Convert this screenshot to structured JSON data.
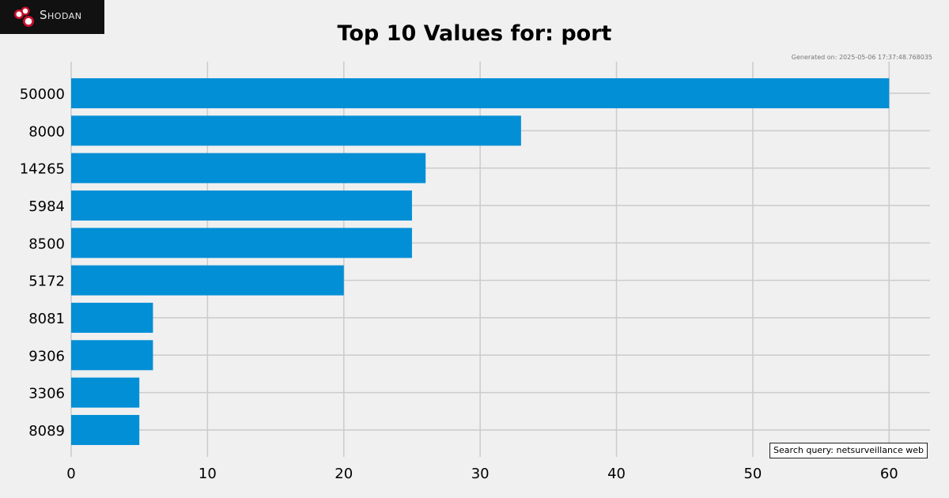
{
  "brand": {
    "name": "Shodan",
    "icon": "shodan-logo-icon"
  },
  "generated_text": "Generated on: 2025-05-06 17:37:48.768035",
  "search_query_text": "Search query: netsurveillance web",
  "colors": {
    "bar": "#038fd6",
    "background": "#f0f0f0",
    "grid": "#cbcbcb"
  },
  "chart_data": {
    "type": "bar",
    "orientation": "horizontal",
    "title": "Top 10 Values for: port",
    "xlabel": "",
    "ylabel": "",
    "categories": [
      "50000",
      "8000",
      "14265",
      "5984",
      "8500",
      "5172",
      "8081",
      "9306",
      "3306",
      "8089"
    ],
    "values": [
      60,
      33,
      26,
      25,
      25,
      20,
      6,
      6,
      5,
      5
    ],
    "xlim": [
      0,
      63
    ],
    "xticks": [
      0,
      10,
      20,
      30,
      40,
      50,
      60
    ],
    "grid": true,
    "legend": "none"
  }
}
